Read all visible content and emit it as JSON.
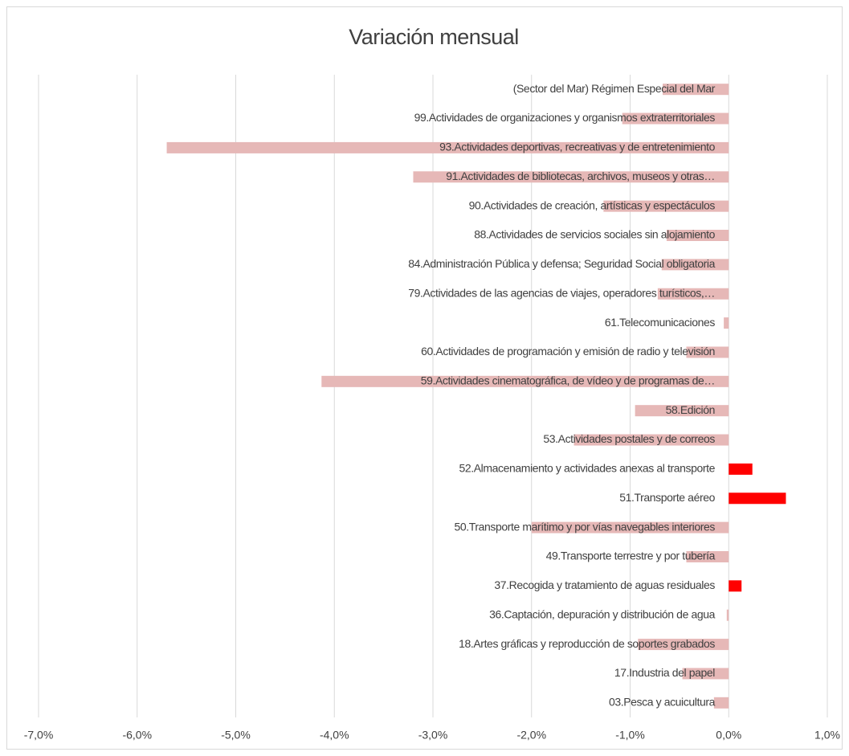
{
  "chart_data": {
    "type": "barh",
    "title": "Variación mensual",
    "categories": [
      "(Sector del Mar) Régimen Especial del Mar",
      "99.Actividades de organizaciones y organismos extraterritoriales",
      "93.Actividades deportivas, recreativas y de entretenimiento",
      "91.Actividades de bibliotecas, archivos, museos y otras…",
      "90.Actividades de creación, artísticas y espectáculos",
      "88.Actividades de servicios sociales sin alojamiento",
      "84.Administración Pública y defensa; Seguridad Social obligatoria",
      "79.Actividades de las agencias de viajes, operadores turísticos,…",
      "61.Telecomunicaciones",
      "60.Actividades de programación y emisión de radio y televisión",
      "59.Actividades cinematográfica, de vídeo y de programas de…",
      "58.Edición",
      "53.Actividades postales y de correos",
      "52.Almacenamiento y actividades anexas al transporte",
      "51.Transporte aéreo",
      "50.Transporte marítimo y por vías navegables interiores",
      "49.Transporte terrestre y por tubería",
      "37.Recogida y tratamiento de aguas residuales",
      "36.Captación, depuración y distribución de agua",
      "18.Artes gráficas y reproducción de soportes grabados",
      "17.Industria del papel",
      "03.Pesca y acuicultura"
    ],
    "values": [
      -0.67,
      -1.08,
      -5.7,
      -3.2,
      -1.27,
      -0.63,
      -0.68,
      -0.72,
      -0.05,
      -0.43,
      -4.13,
      -0.95,
      -1.57,
      0.24,
      0.58,
      -2.0,
      -0.43,
      0.13,
      -0.02,
      -0.92,
      -0.47,
      -0.15
    ],
    "color": "#ff0000",
    "negative_color": "#e6b8b7",
    "xlim": [
      -7,
      1
    ],
    "xticks": [
      {
        "value": -7,
        "label": "-7,0%"
      },
      {
        "value": -6,
        "label": "-6,0%"
      },
      {
        "value": -5,
        "label": "-5,0%"
      },
      {
        "value": -4,
        "label": "-4,0%"
      },
      {
        "value": -3,
        "label": "-3,0%"
      },
      {
        "value": -2,
        "label": "-2,0%"
      },
      {
        "value": -1,
        "label": "-1,0%"
      },
      {
        "value": 0,
        "label": "0,0%"
      },
      {
        "value": 1,
        "label": "1,0%"
      }
    ],
    "grid": true
  }
}
